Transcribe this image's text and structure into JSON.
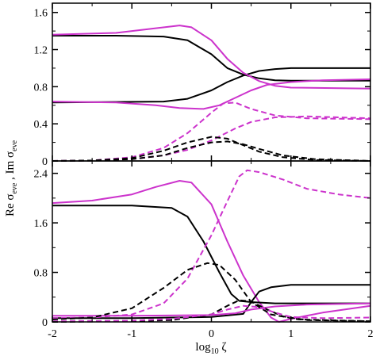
{
  "chart_data": [
    {
      "panel": "top",
      "type": "line",
      "xlim": [
        -2,
        2
      ],
      "ylim": [
        0,
        1.7
      ],
      "x_ticks": [
        "-2",
        "-1",
        "0",
        "1",
        "2"
      ],
      "y_ticks": [
        {
          "v": 0,
          "label": "0"
        },
        {
          "v": 0.4,
          "label": "0.4"
        },
        {
          "v": 0.8,
          "label": "0.8"
        },
        {
          "v": 1.2,
          "label": "1.2"
        },
        {
          "v": 1.6,
          "label": "1.6"
        }
      ],
      "series": [
        {
          "color": "#000000",
          "style": "solid",
          "points": [
            [
              -2,
              1.35
            ],
            [
              -1.2,
              1.35
            ],
            [
              -0.6,
              1.34
            ],
            [
              -0.3,
              1.3
            ],
            [
              0,
              1.15
            ],
            [
              0.2,
              1.0
            ],
            [
              0.4,
              0.93
            ],
            [
              0.6,
              0.89
            ],
            [
              0.8,
              0.87
            ],
            [
              1.0,
              0.865
            ],
            [
              2,
              0.865
            ]
          ]
        },
        {
          "color": "#000000",
          "style": "solid",
          "points": [
            [
              -2,
              0.63
            ],
            [
              -0.6,
              0.64
            ],
            [
              -0.3,
              0.67
            ],
            [
              0,
              0.76
            ],
            [
              0.2,
              0.85
            ],
            [
              0.4,
              0.92
            ],
            [
              0.6,
              0.97
            ],
            [
              0.8,
              0.99
            ],
            [
              1.0,
              1.0
            ],
            [
              2,
              1.0
            ]
          ]
        },
        {
          "color": "#cc33cc",
          "style": "solid",
          "points": [
            [
              -2,
              1.36
            ],
            [
              -1.2,
              1.38
            ],
            [
              -0.7,
              1.43
            ],
            [
              -0.4,
              1.46
            ],
            [
              -0.25,
              1.44
            ],
            [
              0,
              1.3
            ],
            [
              0.2,
              1.1
            ],
            [
              0.4,
              0.95
            ],
            [
              0.6,
              0.86
            ],
            [
              0.8,
              0.81
            ],
            [
              1.0,
              0.79
            ],
            [
              2,
              0.78
            ]
          ]
        },
        {
          "color": "#cc33cc",
          "style": "solid",
          "points": [
            [
              -2,
              0.64
            ],
            [
              -1.2,
              0.63
            ],
            [
              -0.7,
              0.6
            ],
            [
              -0.4,
              0.57
            ],
            [
              -0.1,
              0.56
            ],
            [
              0.1,
              0.6
            ],
            [
              0.3,
              0.68
            ],
            [
              0.5,
              0.76
            ],
            [
              0.7,
              0.82
            ],
            [
              1.0,
              0.85
            ],
            [
              1.4,
              0.87
            ],
            [
              2,
              0.88
            ]
          ]
        },
        {
          "color": "#cc33cc",
          "style": "dashed",
          "points": [
            [
              -2,
              0.0
            ],
            [
              -1.5,
              0.005
            ],
            [
              -1,
              0.04
            ],
            [
              -0.6,
              0.14
            ],
            [
              -0.3,
              0.3
            ],
            [
              0,
              0.52
            ],
            [
              0.15,
              0.62
            ],
            [
              0.3,
              0.63
            ],
            [
              0.5,
              0.56
            ],
            [
              0.8,
              0.49
            ],
            [
              1.2,
              0.46
            ],
            [
              2,
              0.45
            ]
          ]
        },
        {
          "color": "#cc33cc",
          "style": "dashed",
          "points": [
            [
              -2,
              0.0
            ],
            [
              -1.5,
              0.003
            ],
            [
              -1,
              0.02
            ],
            [
              -0.6,
              0.06
            ],
            [
              -0.3,
              0.12
            ],
            [
              0,
              0.22
            ],
            [
              0.3,
              0.35
            ],
            [
              0.5,
              0.42
            ],
            [
              0.8,
              0.47
            ],
            [
              1.2,
              0.48
            ],
            [
              1.6,
              0.47
            ],
            [
              2,
              0.46
            ]
          ]
        },
        {
          "color": "#000000",
          "style": "dashed",
          "points": [
            [
              -2,
              0.0
            ],
            [
              -1.5,
              0.005
            ],
            [
              -1,
              0.03
            ],
            [
              -0.6,
              0.11
            ],
            [
              -0.3,
              0.2
            ],
            [
              0,
              0.26
            ],
            [
              0.2,
              0.24
            ],
            [
              0.4,
              0.17
            ],
            [
              0.6,
              0.1
            ],
            [
              0.9,
              0.04
            ],
            [
              1.3,
              0.01
            ],
            [
              2,
              0.0
            ]
          ]
        },
        {
          "color": "#000000",
          "style": "dashed",
          "points": [
            [
              -2,
              0.0
            ],
            [
              -1.5,
              0.003
            ],
            [
              -1,
              0.02
            ],
            [
              -0.6,
              0.06
            ],
            [
              -0.3,
              0.14
            ],
            [
              0,
              0.2
            ],
            [
              0.2,
              0.21
            ],
            [
              0.4,
              0.18
            ],
            [
              0.6,
              0.13
            ],
            [
              0.9,
              0.06
            ],
            [
              1.3,
              0.02
            ],
            [
              2,
              0.0
            ]
          ]
        }
      ]
    },
    {
      "panel": "bottom",
      "type": "line",
      "xlim": [
        -2,
        2
      ],
      "ylim": [
        0,
        2.6
      ],
      "x_ticks": [
        "-2",
        "-1",
        "0",
        "1",
        "2"
      ],
      "y_ticks": [
        {
          "v": 0,
          "label": "0"
        },
        {
          "v": 0.8,
          "label": "0.8"
        },
        {
          "v": 1.6,
          "label": "1.6"
        },
        {
          "v": 2.4,
          "label": "2.4"
        }
      ],
      "series": [
        {
          "color": "#cc33cc",
          "style": "solid",
          "points": [
            [
              -2,
              1.92
            ],
            [
              -1.5,
              1.96
            ],
            [
              -1,
              2.06
            ],
            [
              -0.7,
              2.18
            ],
            [
              -0.4,
              2.28
            ],
            [
              -0.25,
              2.25
            ],
            [
              0,
              1.9
            ],
            [
              0.2,
              1.3
            ],
            [
              0.4,
              0.75
            ],
            [
              0.6,
              0.32
            ],
            [
              0.75,
              0.07
            ],
            [
              0.85,
              0.0
            ],
            [
              1.0,
              0.05
            ],
            [
              1.4,
              0.15
            ],
            [
              2,
              0.26
            ]
          ]
        },
        {
          "color": "#000000",
          "style": "solid",
          "points": [
            [
              -2,
              1.88
            ],
            [
              -1,
              1.88
            ],
            [
              -0.5,
              1.84
            ],
            [
              -0.3,
              1.7
            ],
            [
              -0.1,
              1.3
            ],
            [
              0.1,
              0.8
            ],
            [
              0.25,
              0.45
            ],
            [
              0.35,
              0.34
            ],
            [
              0.5,
              0.32
            ],
            [
              0.8,
              0.3
            ],
            [
              1.2,
              0.3
            ],
            [
              2,
              0.3
            ]
          ]
        },
        {
          "color": "#000000",
          "style": "solid",
          "points": [
            [
              -2,
              0.06
            ],
            [
              -1,
              0.06
            ],
            [
              -0.5,
              0.07
            ],
            [
              0,
              0.08
            ],
            [
              0.4,
              0.13
            ],
            [
              0.5,
              0.32
            ],
            [
              0.6,
              0.49
            ],
            [
              0.75,
              0.56
            ],
            [
              1.0,
              0.6
            ],
            [
              1.4,
              0.6
            ],
            [
              2,
              0.6
            ]
          ]
        },
        {
          "color": "#cc33cc",
          "style": "solid",
          "points": [
            [
              -2,
              0.1
            ],
            [
              -1,
              0.1
            ],
            [
              0,
              0.11
            ],
            [
              0.3,
              0.14
            ],
            [
              0.5,
              0.2
            ],
            [
              0.8,
              0.25
            ],
            [
              1.2,
              0.28
            ],
            [
              1.6,
              0.29
            ],
            [
              2,
              0.3
            ]
          ]
        },
        {
          "color": "#cc33cc",
          "style": "dashed",
          "points": [
            [
              -2,
              0.06
            ],
            [
              -1.5,
              0.07
            ],
            [
              -1,
              0.12
            ],
            [
              -0.6,
              0.3
            ],
            [
              -0.3,
              0.7
            ],
            [
              0,
              1.4
            ],
            [
              0.2,
              1.95
            ],
            [
              0.35,
              2.35
            ],
            [
              0.45,
              2.45
            ],
            [
              0.6,
              2.42
            ],
            [
              0.9,
              2.3
            ],
            [
              1.2,
              2.15
            ],
            [
              1.6,
              2.06
            ],
            [
              2,
              2.0
            ]
          ]
        },
        {
          "color": "#000000",
          "style": "dashed",
          "points": [
            [
              -2,
              0.04
            ],
            [
              -1.5,
              0.07
            ],
            [
              -1,
              0.22
            ],
            [
              -0.6,
              0.55
            ],
            [
              -0.3,
              0.84
            ],
            [
              -0.05,
              0.95
            ],
            [
              0.1,
              0.92
            ],
            [
              0.3,
              0.68
            ],
            [
              0.5,
              0.32
            ],
            [
              0.75,
              0.12
            ],
            [
              1.1,
              0.04
            ],
            [
              2,
              0.01
            ]
          ]
        },
        {
          "color": "#000000",
          "style": "dashed",
          "points": [
            [
              -2,
              0.0
            ],
            [
              -1,
              0.01
            ],
            [
              -0.5,
              0.03
            ],
            [
              0,
              0.12
            ],
            [
              0.2,
              0.26
            ],
            [
              0.35,
              0.35
            ],
            [
              0.5,
              0.33
            ],
            [
              0.7,
              0.2
            ],
            [
              0.9,
              0.09
            ],
            [
              1.2,
              0.03
            ],
            [
              2,
              0.01
            ]
          ]
        },
        {
          "color": "#cc33cc",
          "style": "dashed",
          "points": [
            [
              -2,
              0.01
            ],
            [
              -1,
              0.02
            ],
            [
              -0.5,
              0.05
            ],
            [
              0,
              0.12
            ],
            [
              0.2,
              0.2
            ],
            [
              0.4,
              0.26
            ],
            [
              0.6,
              0.24
            ],
            [
              0.8,
              0.15
            ],
            [
              1.0,
              0.08
            ],
            [
              1.4,
              0.06
            ],
            [
              2,
              0.07
            ]
          ]
        }
      ]
    }
  ],
  "ylabel_parts": [
    "Re σ",
    "eve",
    " , Im σ",
    "eve"
  ],
  "xlabel_parts": [
    "log",
    "10",
    " ζ"
  ]
}
